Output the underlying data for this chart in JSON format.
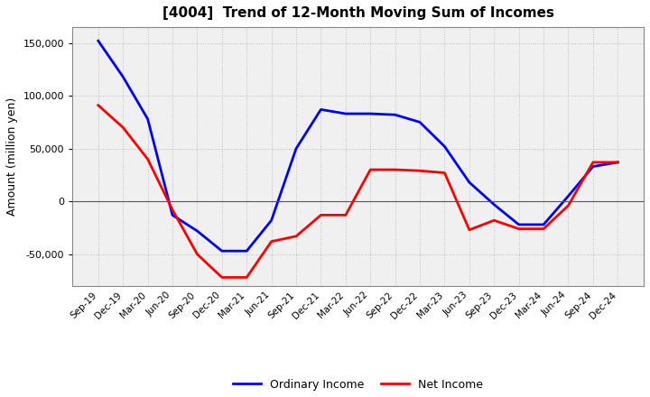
{
  "title": "[4004]  Trend of 12-Month Moving Sum of Incomes",
  "ylabel": "Amount (million yen)",
  "x_labels": [
    "Sep-19",
    "Dec-19",
    "Mar-20",
    "Jun-20",
    "Sep-20",
    "Dec-20",
    "Mar-21",
    "Jun-21",
    "Sep-21",
    "Dec-21",
    "Mar-22",
    "Jun-22",
    "Sep-22",
    "Dec-22",
    "Mar-23",
    "Jun-23",
    "Sep-23",
    "Dec-23",
    "Mar-24",
    "Jun-24",
    "Sep-24",
    "Dec-24"
  ],
  "ordinary_income": [
    152000,
    118000,
    78000,
    -13000,
    -28000,
    -47000,
    -47000,
    -18000,
    50000,
    87000,
    83000,
    83000,
    82000,
    75000,
    52000,
    18000,
    -3000,
    -22000,
    -22000,
    5000,
    33000,
    37000
  ],
  "net_income": [
    91000,
    70000,
    40000,
    -8000,
    -50000,
    -72000,
    -72000,
    -38000,
    -33000,
    -13000,
    -13000,
    30000,
    30000,
    29000,
    27000,
    -27000,
    -18000,
    -26000,
    -26000,
    -4000,
    37000,
    37000
  ],
  "ordinary_color": "#0000FF",
  "net_color": "#FF0000",
  "ylim": [
    -80000,
    165000
  ],
  "yticks": [
    -50000,
    0,
    50000,
    100000,
    150000
  ],
  "background_color": "#FFFFFF",
  "plot_bg_color": "#F0F0F0",
  "grid_color": "#BBBBBB",
  "legend_labels": [
    "Ordinary Income",
    "Net Income"
  ]
}
